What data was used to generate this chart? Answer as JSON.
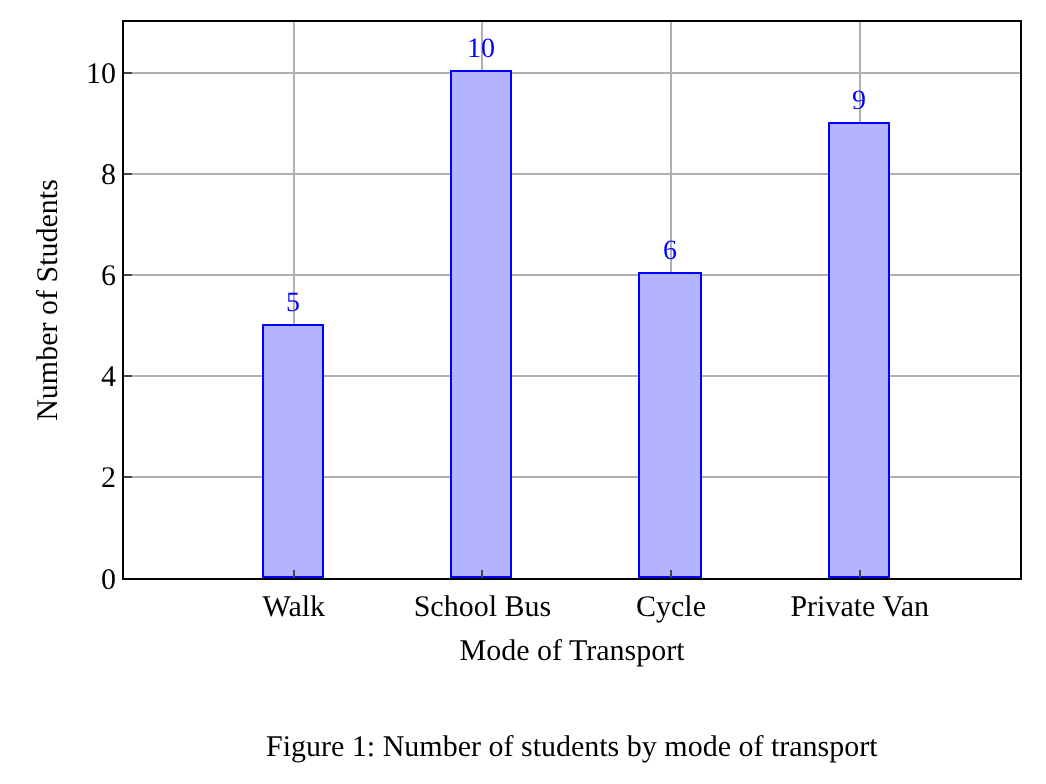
{
  "chart_data": {
    "type": "bar",
    "xlabel": "Mode of Transport",
    "ylabel": "Number of Students",
    "categories": [
      "Walk",
      "School Bus",
      "Cycle",
      "Private Van"
    ],
    "values": [
      5,
      10,
      6,
      9
    ],
    "color": "#b3b3ff",
    "ylim": [
      0,
      11
    ],
    "yticks": [
      0,
      2,
      4,
      6,
      8,
      10
    ],
    "grid": true,
    "data_labels": true,
    "annotations": [
      "Figure 1: Number of students by mode of transport"
    ]
  }
}
